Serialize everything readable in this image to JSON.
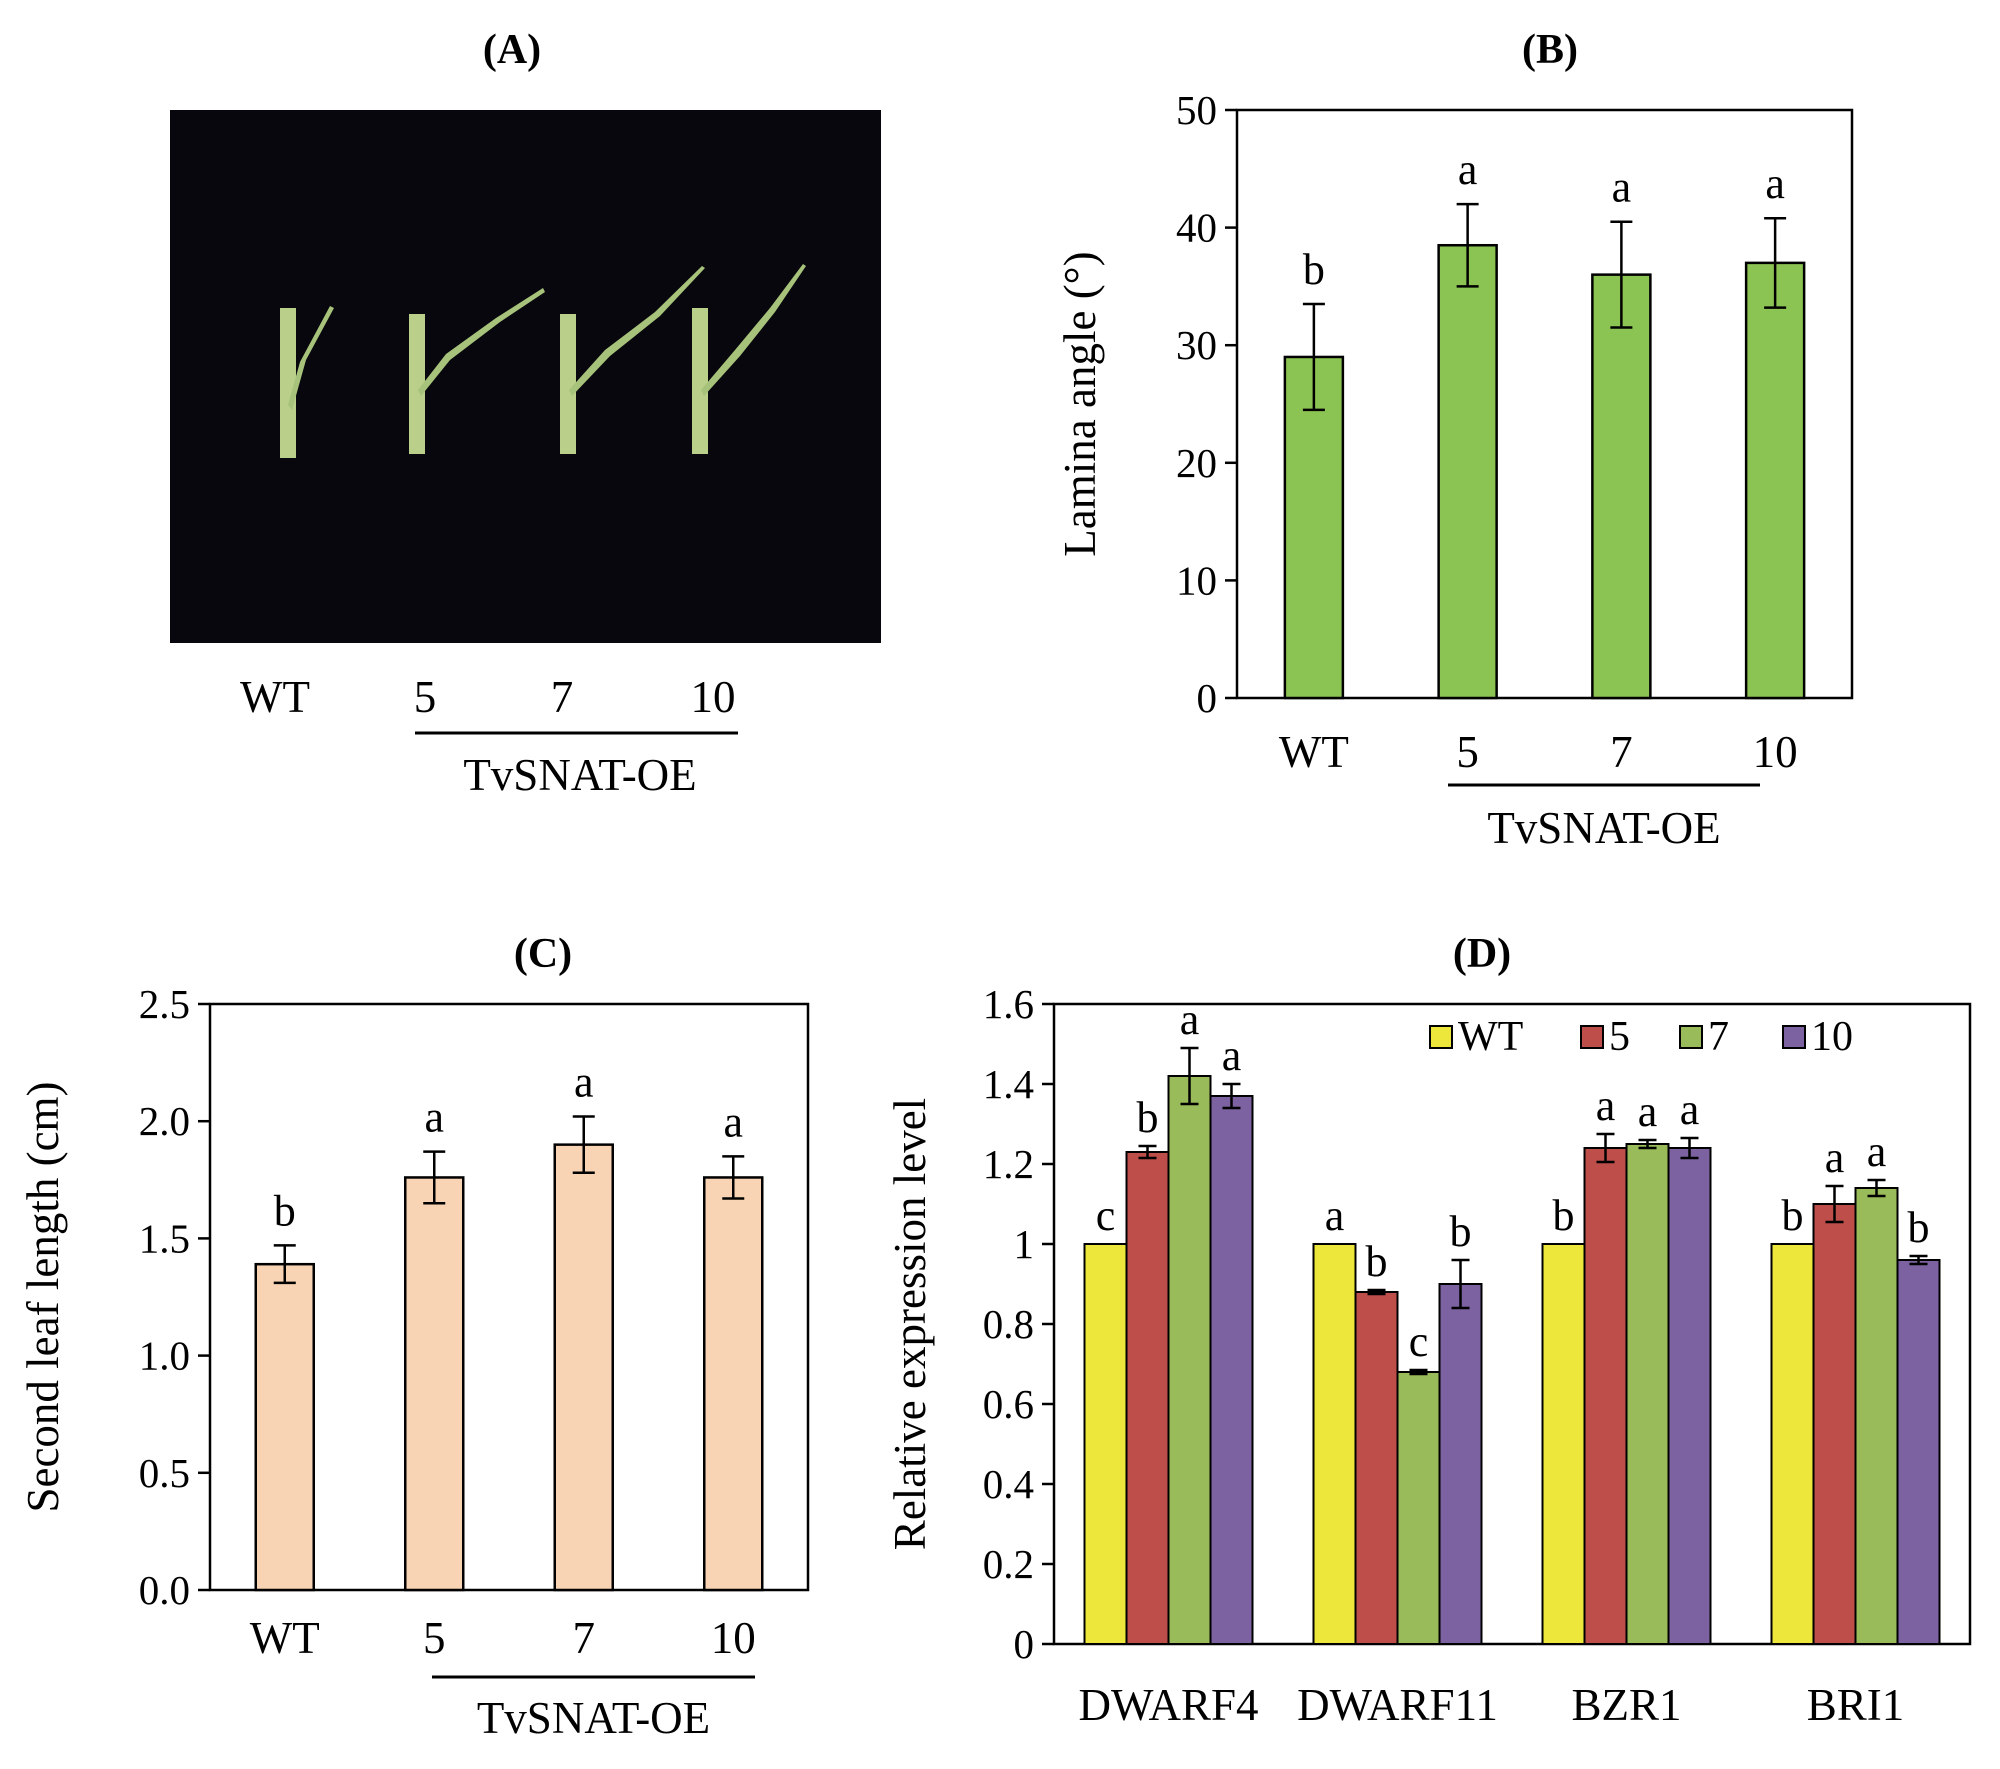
{
  "panels": {
    "A": {
      "title": "(A)",
      "photo_labels": [
        "WT",
        "5",
        "7",
        "10"
      ],
      "group_label": "TvSNAT-OE"
    }
  },
  "chart_data": [
    {
      "id": "B",
      "type": "bar",
      "title": "(B)",
      "xlabel": "",
      "ylabel": "Lamina angle (°)",
      "categories": [
        "WT",
        "5",
        "7",
        "10"
      ],
      "group_label": "TvSNAT-OE",
      "values": [
        29,
        38.5,
        36,
        37
      ],
      "errors": [
        4.5,
        3.5,
        4.5,
        3.8
      ],
      "significance": [
        "b",
        "a",
        "a",
        "a"
      ],
      "ylim": [
        0,
        50
      ],
      "yticks": [
        "0",
        "10",
        "20",
        "30",
        "40",
        "50"
      ],
      "bar_color": "#8cc453",
      "grid": false,
      "legend": false
    },
    {
      "id": "C",
      "type": "bar",
      "title": "(C)",
      "xlabel": "",
      "ylabel": "Second leaf length (cm)",
      "categories": [
        "WT",
        "5",
        "7",
        "10"
      ],
      "group_label": "TvSNAT-OE",
      "values": [
        1.39,
        1.76,
        1.9,
        1.76
      ],
      "errors": [
        0.08,
        0.11,
        0.12,
        0.09
      ],
      "significance": [
        "b",
        "a",
        "a",
        "a"
      ],
      "ylim": [
        0,
        2.5
      ],
      "yticks": [
        "0.0",
        "0.5",
        "1.0",
        "1.5",
        "2.0",
        "2.5"
      ],
      "bar_color": "#f8d4b4",
      "grid": false,
      "legend": false
    },
    {
      "id": "D",
      "type": "bar",
      "title": "(D)",
      "xlabel": "",
      "ylabel": "Relative expression level",
      "categories": [
        "DWARF4",
        "DWARF11",
        "BZR1",
        "BRI1"
      ],
      "series": [
        {
          "name": "WT",
          "color": "#ece73a",
          "values": [
            1,
            1,
            1,
            1
          ],
          "errors": [
            0,
            0,
            0,
            0
          ],
          "significance": [
            "c",
            "a",
            "b",
            "b"
          ]
        },
        {
          "name": "5",
          "color": "#bd4e4a",
          "values": [
            1.23,
            0.88,
            1.24,
            1.1
          ],
          "errors": [
            0.015,
            0.005,
            0.035,
            0.045
          ],
          "significance": [
            "b",
            "b",
            "a",
            "a"
          ]
        },
        {
          "name": "7",
          "color": "#9abb59",
          "values": [
            1.42,
            0.68,
            1.25,
            1.14
          ],
          "errors": [
            0.07,
            0.005,
            0.01,
            0.02
          ],
          "significance": [
            "a",
            "c",
            "a",
            "a"
          ]
        },
        {
          "name": "10",
          "color": "#7c62a0",
          "values": [
            1.37,
            0.9,
            1.24,
            0.96
          ],
          "errors": [
            0.03,
            0.06,
            0.025,
            0.01
          ],
          "significance": [
            "a",
            "b",
            "a",
            "b"
          ]
        }
      ],
      "ylim": [
        0,
        1.6
      ],
      "yticks": [
        "0",
        "0.2",
        "0.4",
        "0.6",
        "0.8",
        "1",
        "1.2",
        "1.4",
        "1.6"
      ],
      "grid": false,
      "legend": "top-right"
    }
  ]
}
